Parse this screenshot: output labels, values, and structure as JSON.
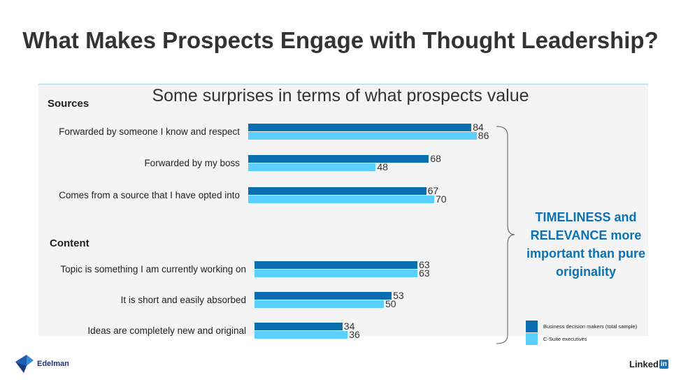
{
  "title": "What Makes Prospects Engage with Thought Leadership?",
  "subtitle": "Some surprises in terms of what prospects value",
  "callout": "TIMELINESS and RELEVANCE more important than pure originality",
  "colors": {
    "series1": "#0a6fb0",
    "series2": "#5bd0ff",
    "callout": "#0a72b5"
  },
  "logos": {
    "left": "Edelman",
    "right_text": "Linked",
    "right_box": "in"
  },
  "chart_data": {
    "type": "bar",
    "orientation": "horizontal",
    "legend": "bottom-right",
    "groups": [
      {
        "name": "Sources",
        "categories": [
          "Forwarded by someone I know and respect",
          "Forwarded by my boss",
          "Comes from a source that I have opted into"
        ]
      },
      {
        "name": "Content",
        "categories": [
          "Topic is something I am currently working on",
          "It is short and easily absorbed",
          "Ideas are completely new and original"
        ]
      }
    ],
    "series": [
      {
        "name": "Business decision makers (total sample)",
        "values": [
          84,
          68,
          67,
          63,
          53,
          34
        ]
      },
      {
        "name": "C-Suite executives",
        "values": [
          86,
          48,
          70,
          63,
          50,
          36
        ]
      }
    ]
  }
}
